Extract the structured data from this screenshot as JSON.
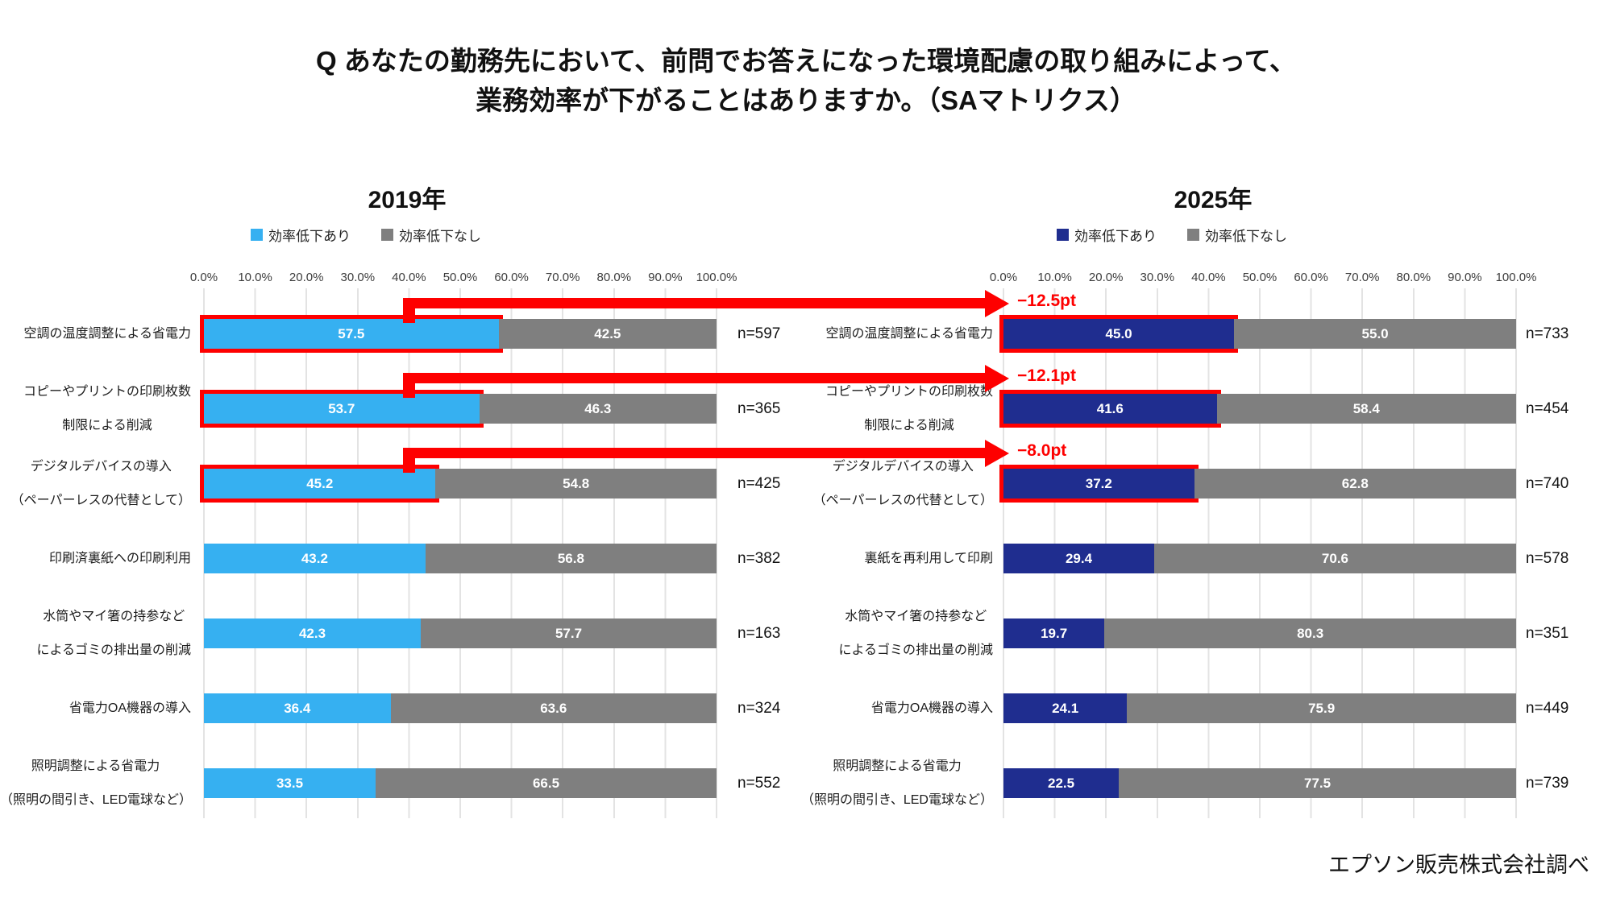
{
  "title": {
    "line1": "Q あなたの勤務先において、前問でお答えになった環境配慮の取り組みによって、",
    "line2": "業務効率が下がることはありますか。（SAマトリクス）"
  },
  "source": "エプソン販売株式会社調べ",
  "colors": {
    "yes_2019": "#36B0F1",
    "yes_2025": "#1F2D8F",
    "no_gray": "#7F7F7F",
    "arrow_red": "#FE0000"
  },
  "axis_ticks": [
    "0.0%",
    "10.0%",
    "20.0%",
    "30.0%",
    "40.0%",
    "50.0%",
    "60.0%",
    "70.0%",
    "80.0%",
    "90.0%",
    "100.0%"
  ],
  "charts": [
    {
      "year": "2019年",
      "bar_color": "#36B0F1",
      "legend": [
        {
          "label": "効率低下あり",
          "color": "#36B0F1"
        },
        {
          "label": "効率低下なし",
          "color": "#7F7F7F"
        }
      ],
      "rows": [
        {
          "label": "空調の温度調整による省電力",
          "yes": 57.5,
          "no": 42.5,
          "yes_text": "57.5",
          "no_text": "42.5",
          "n": "n=597",
          "highlight": true
        },
        {
          "label": "コピーやプリントの印刷枚数\n制限による削減",
          "yes": 53.7,
          "no": 46.3,
          "yes_text": "53.7",
          "no_text": "46.3",
          "n": "n=365",
          "highlight": true
        },
        {
          "label": "デジタルデバイスの導入\n（ペーパーレスの代替として）",
          "yes": 45.2,
          "no": 54.8,
          "yes_text": "45.2",
          "no_text": "54.8",
          "n": "n=425",
          "highlight": true
        },
        {
          "label": "印刷済裏紙への印刷利用",
          "yes": 43.2,
          "no": 56.8,
          "yes_text": "43.2",
          "no_text": "56.8",
          "n": "n=382",
          "highlight": false
        },
        {
          "label": "水筒やマイ箸の持参など\nによるゴミの排出量の削減",
          "yes": 42.3,
          "no": 57.7,
          "yes_text": "42.3",
          "no_text": "57.7",
          "n": "n=163",
          "highlight": false
        },
        {
          "label": "省電力OA機器の導入",
          "yes": 36.4,
          "no": 63.6,
          "yes_text": "36.4",
          "no_text": "63.6",
          "n": "n=324",
          "highlight": false
        },
        {
          "label": "照明調整による省電力\n（照明の間引き、LED電球など）",
          "yes": 33.5,
          "no": 66.5,
          "yes_text": "33.5",
          "no_text": "66.5",
          "n": "n=552",
          "highlight": false
        }
      ]
    },
    {
      "year": "2025年",
      "bar_color": "#1F2D8F",
      "legend": [
        {
          "label": "効率低下あり",
          "color": "#1F2D8F"
        },
        {
          "label": "効率低下なし",
          "color": "#7F7F7F"
        }
      ],
      "rows": [
        {
          "label": "空調の温度調整による省電力",
          "yes": 45.0,
          "no": 55.0,
          "yes_text": "45.0",
          "no_text": "55.0",
          "n": "n=733",
          "highlight": true
        },
        {
          "label": "コピーやプリントの印刷枚数\n制限による削減",
          "yes": 41.6,
          "no": 58.4,
          "yes_text": "41.6",
          "no_text": "58.4",
          "n": "n=454",
          "highlight": true
        },
        {
          "label": "デジタルデバイスの導入\n（ペーパーレスの代替として）",
          "yes": 37.2,
          "no": 62.8,
          "yes_text": "37.2",
          "no_text": "62.8",
          "n": "n=740",
          "highlight": true
        },
        {
          "label": "裏紙を再利用して印刷",
          "yes": 29.4,
          "no": 70.6,
          "yes_text": "29.4",
          "no_text": "70.6",
          "n": "n=578",
          "highlight": false
        },
        {
          "label": "水筒やマイ箸の持参など\nによるゴミの排出量の削減",
          "yes": 19.7,
          "no": 80.3,
          "yes_text": "19.7",
          "no_text": "80.3",
          "n": "n=351",
          "highlight": false
        },
        {
          "label": "省電力OA機器の導入",
          "yes": 24.1,
          "no": 75.9,
          "yes_text": "24.1",
          "no_text": "75.9",
          "n": "n=449",
          "highlight": false
        },
        {
          "label": "照明調整による省電力\n（照明の間引き、LED電球など）",
          "yes": 22.5,
          "no": 77.5,
          "yes_text": "22.5",
          "no_text": "77.5",
          "n": "n=739",
          "highlight": false
        }
      ]
    }
  ],
  "arrows": [
    {
      "label": "−12.5pt"
    },
    {
      "label": "−12.1pt"
    },
    {
      "label": "−8.0pt"
    }
  ],
  "chart_data": [
    {
      "type": "bar",
      "orientation": "horizontal",
      "stacked": true,
      "title": "2019年",
      "categories": [
        "空調の温度調整による省電力",
        "コピーやプリントの印刷枚数制限による削減",
        "デジタルデバイスの導入（ペーパーレスの代替として）",
        "印刷済裏紙への印刷利用",
        "水筒やマイ箸の持参などによるゴミの排出量の削減",
        "省電力OA機器の導入",
        "照明調整による省電力（照明の間引き、LED電球など）"
      ],
      "series": [
        {
          "name": "効率低下あり",
          "values": [
            57.5,
            53.7,
            45.2,
            43.2,
            42.3,
            36.4,
            33.5
          ]
        },
        {
          "name": "効率低下なし",
          "values": [
            42.5,
            46.3,
            54.8,
            56.8,
            57.7,
            63.6,
            66.5
          ]
        }
      ],
      "n": [
        597,
        365,
        425,
        382,
        163,
        324,
        552
      ],
      "xlim": [
        0,
        100
      ],
      "x_tick_labels": [
        "0.0%",
        "10.0%",
        "20.0%",
        "30.0%",
        "40.0%",
        "50.0%",
        "60.0%",
        "70.0%",
        "80.0%",
        "90.0%",
        "100.0%"
      ],
      "legend_position": "top",
      "grid": true
    },
    {
      "type": "bar",
      "orientation": "horizontal",
      "stacked": true,
      "title": "2025年",
      "categories": [
        "空調の温度調整による省電力",
        "コピーやプリントの印刷枚数制限による削減",
        "デジタルデバイスの導入（ペーパーレスの代替として）",
        "裏紙を再利用して印刷",
        "水筒やマイ箸の持参などによるゴミの排出量の削減",
        "省電力OA機器の導入",
        "照明調整による省電力（照明の間引き、LED電球など）"
      ],
      "series": [
        {
          "name": "効率低下あり",
          "values": [
            45.0,
            41.6,
            37.2,
            29.4,
            19.7,
            24.1,
            22.5
          ]
        },
        {
          "name": "効率低下なし",
          "values": [
            55.0,
            58.4,
            62.8,
            70.6,
            80.3,
            75.9,
            77.5
          ]
        }
      ],
      "n": [
        733,
        454,
        740,
        578,
        351,
        449,
        739
      ],
      "xlim": [
        0,
        100
      ],
      "x_tick_labels": [
        "0.0%",
        "10.0%",
        "20.0%",
        "30.0%",
        "40.0%",
        "50.0%",
        "60.0%",
        "70.0%",
        "80.0%",
        "90.0%",
        "100.0%"
      ],
      "legend_position": "top",
      "grid": true,
      "annotations": [
        {
          "category_index": 0,
          "text": "−12.5pt"
        },
        {
          "category_index": 1,
          "text": "−12.1pt"
        },
        {
          "category_index": 2,
          "text": "−8.0pt"
        }
      ]
    }
  ]
}
